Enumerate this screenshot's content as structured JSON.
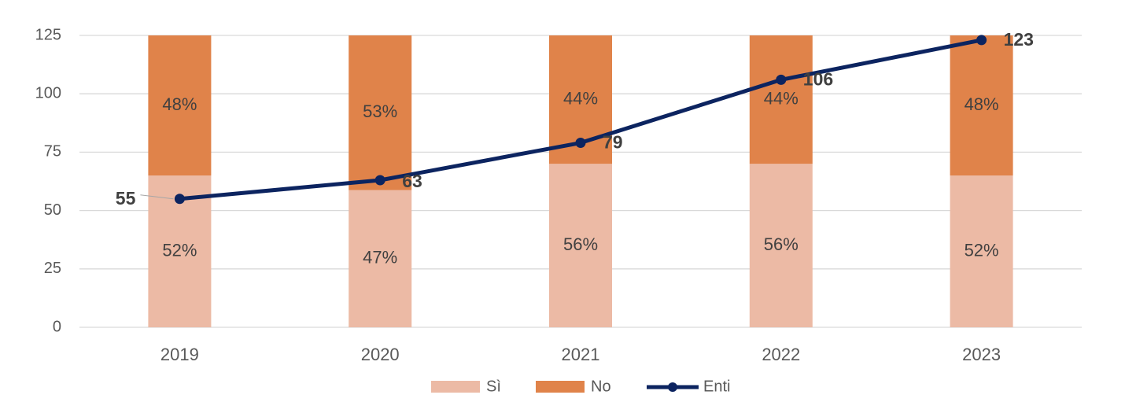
{
  "chart_data": {
    "type": "combo",
    "categories": [
      "2019",
      "2020",
      "2021",
      "2022",
      "2023"
    ],
    "series": [
      {
        "name": "Sì",
        "color": "#ecbaa5",
        "kind": "bar",
        "axis": "y2",
        "values": [
          52,
          47,
          56,
          56,
          52
        ],
        "value_labels": [
          "52%",
          "47%",
          "56%",
          "56%",
          "52%"
        ]
      },
      {
        "name": "No",
        "color": "#e0834a",
        "kind": "bar",
        "axis": "y2",
        "values": [
          48,
          53,
          44,
          44,
          48
        ],
        "value_labels": [
          "48%",
          "53%",
          "44%",
          "44%",
          "48%"
        ]
      },
      {
        "name": "Enti",
        "color": "#0c2460",
        "kind": "line",
        "axis": "y",
        "values": [
          55,
          63,
          79,
          106,
          123
        ]
      }
    ],
    "ylim": [
      0,
      125
    ],
    "yticks": [
      0,
      25,
      50,
      75,
      100,
      125
    ],
    "y2lim": [
      0,
      100
    ],
    "grid": true,
    "legend": "bottom"
  }
}
